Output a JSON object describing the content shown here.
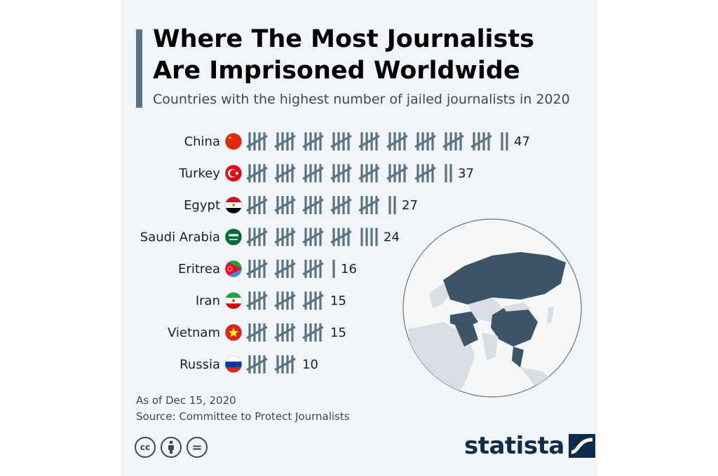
{
  "header": {
    "title": "Where The Most Journalists Are Imprisoned Worldwide",
    "subtitle": "Countries with the highest number of jailed journalists in 2020"
  },
  "chart_data": {
    "type": "bar",
    "title": "Where The Most Journalists Are Imprisoned Worldwide",
    "subtitle": "Countries with the highest number of jailed journalists in 2020",
    "categories": [
      "China",
      "Turkey",
      "Egypt",
      "Saudi Arabia",
      "Eritrea",
      "Iran",
      "Vietnam",
      "Russia"
    ],
    "values": [
      47,
      37,
      27,
      24,
      16,
      15,
      15,
      10
    ],
    "value_labels": [
      "47",
      "37",
      "27",
      "24",
      "16",
      "15",
      "15",
      "10"
    ],
    "style": "tally marks in groups of five",
    "legend": "none",
    "grid": false
  },
  "flags": [
    {
      "country": "China",
      "icon": "china-flag-icon",
      "colors": [
        "#de2910",
        "#ffde00"
      ]
    },
    {
      "country": "Turkey",
      "icon": "turkey-flag-icon",
      "colors": [
        "#e30a17",
        "#ffffff"
      ]
    },
    {
      "country": "Egypt",
      "icon": "egypt-flag-icon",
      "colors": [
        "#ce1126",
        "#ffffff",
        "#000000"
      ]
    },
    {
      "country": "Saudi Arabia",
      "icon": "saudi-arabia-flag-icon",
      "colors": [
        "#006c35",
        "#ffffff"
      ]
    },
    {
      "country": "Eritrea",
      "icon": "eritrea-flag-icon",
      "colors": [
        "#ea0437",
        "#12ad2b",
        "#4189dd",
        "#ffc726"
      ]
    },
    {
      "country": "Iran",
      "icon": "iran-flag-icon",
      "colors": [
        "#239f40",
        "#ffffff",
        "#da0000"
      ]
    },
    {
      "country": "Vietnam",
      "icon": "vietnam-flag-icon",
      "colors": [
        "#da251d",
        "#ffff00"
      ]
    },
    {
      "country": "Russia",
      "icon": "russia-flag-icon",
      "colors": [
        "#ffffff",
        "#0039a6",
        "#d52b1e"
      ]
    }
  ],
  "footer": {
    "note": "As of Dec 15, 2020",
    "source": "Source: Committee to Protect Journalists",
    "license_icons": [
      "cc-icon",
      "attribution-icon",
      "no-derivatives-icon"
    ],
    "cc_label": "cc",
    "nd_label": "="
  },
  "brand": {
    "name": "statista",
    "color": "#0f2d4a"
  },
  "colors": {
    "tally": "#5b7384",
    "card_background": "#f1f5f9",
    "highlight_country": "#3d5466",
    "land": "#d8dee3"
  }
}
